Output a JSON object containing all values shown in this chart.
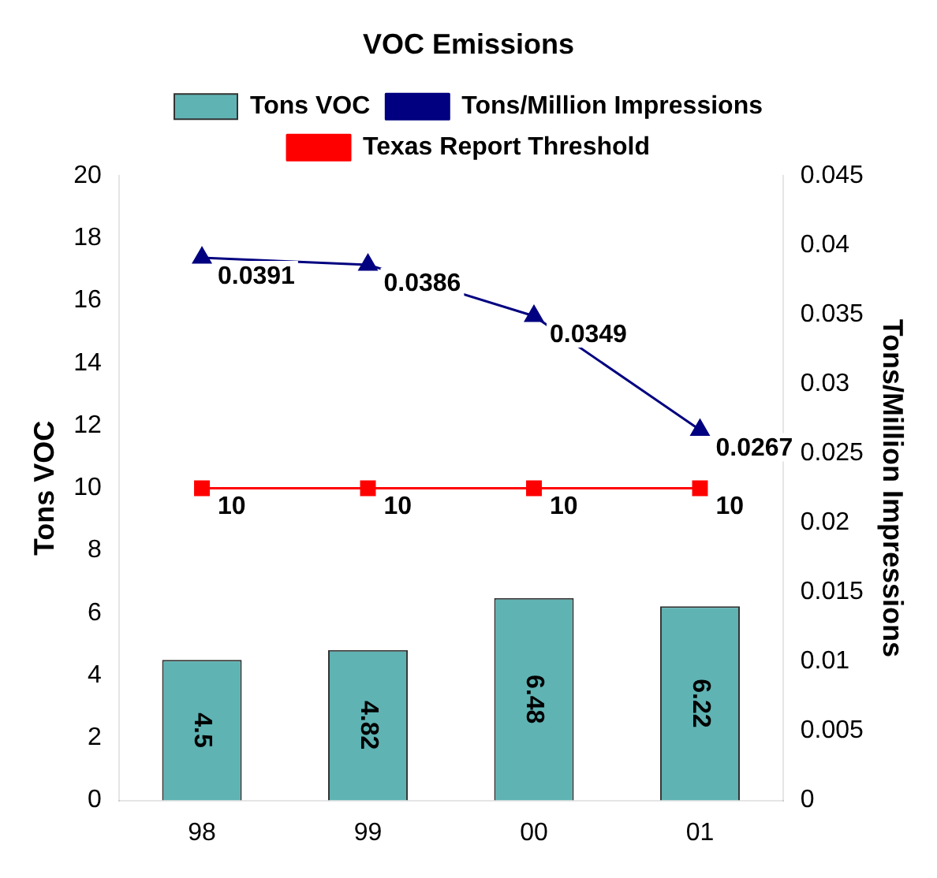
{
  "chart_data": {
    "type": "bar",
    "title": "VOC Emissions",
    "categories": [
      "98",
      "99",
      "00",
      "01"
    ],
    "series": [
      {
        "name": "Tons VOC",
        "color": "#5fb3b3",
        "values": [
          4.5,
          4.82,
          6.48,
          6.22
        ]
      },
      {
        "name": "Tons/Million Impressions",
        "type": "line",
        "axis": "y2",
        "color": "#000080",
        "marker": "triangle",
        "values": [
          0.0391,
          0.0386,
          0.0349,
          0.0267
        ]
      },
      {
        "name": "Texas Report Threshold",
        "type": "line",
        "color": "#ff0000",
        "marker": "square",
        "values": [
          10,
          10,
          10,
          10
        ]
      }
    ],
    "ylabel": "Tons VOC",
    "y2label": "Tons/Million Impressions",
    "ylim": [
      0,
      20
    ],
    "yticks": [
      0,
      2,
      4,
      6,
      8,
      10,
      12,
      14,
      16,
      18,
      20
    ],
    "y2lim": [
      0,
      0.045
    ],
    "y2ticks": [
      0,
      0.005,
      0.01,
      0.015,
      0.02,
      0.025,
      0.03,
      0.035,
      0.04,
      0.045
    ],
    "data_labels": true,
    "legend": "top",
    "grid": false
  }
}
